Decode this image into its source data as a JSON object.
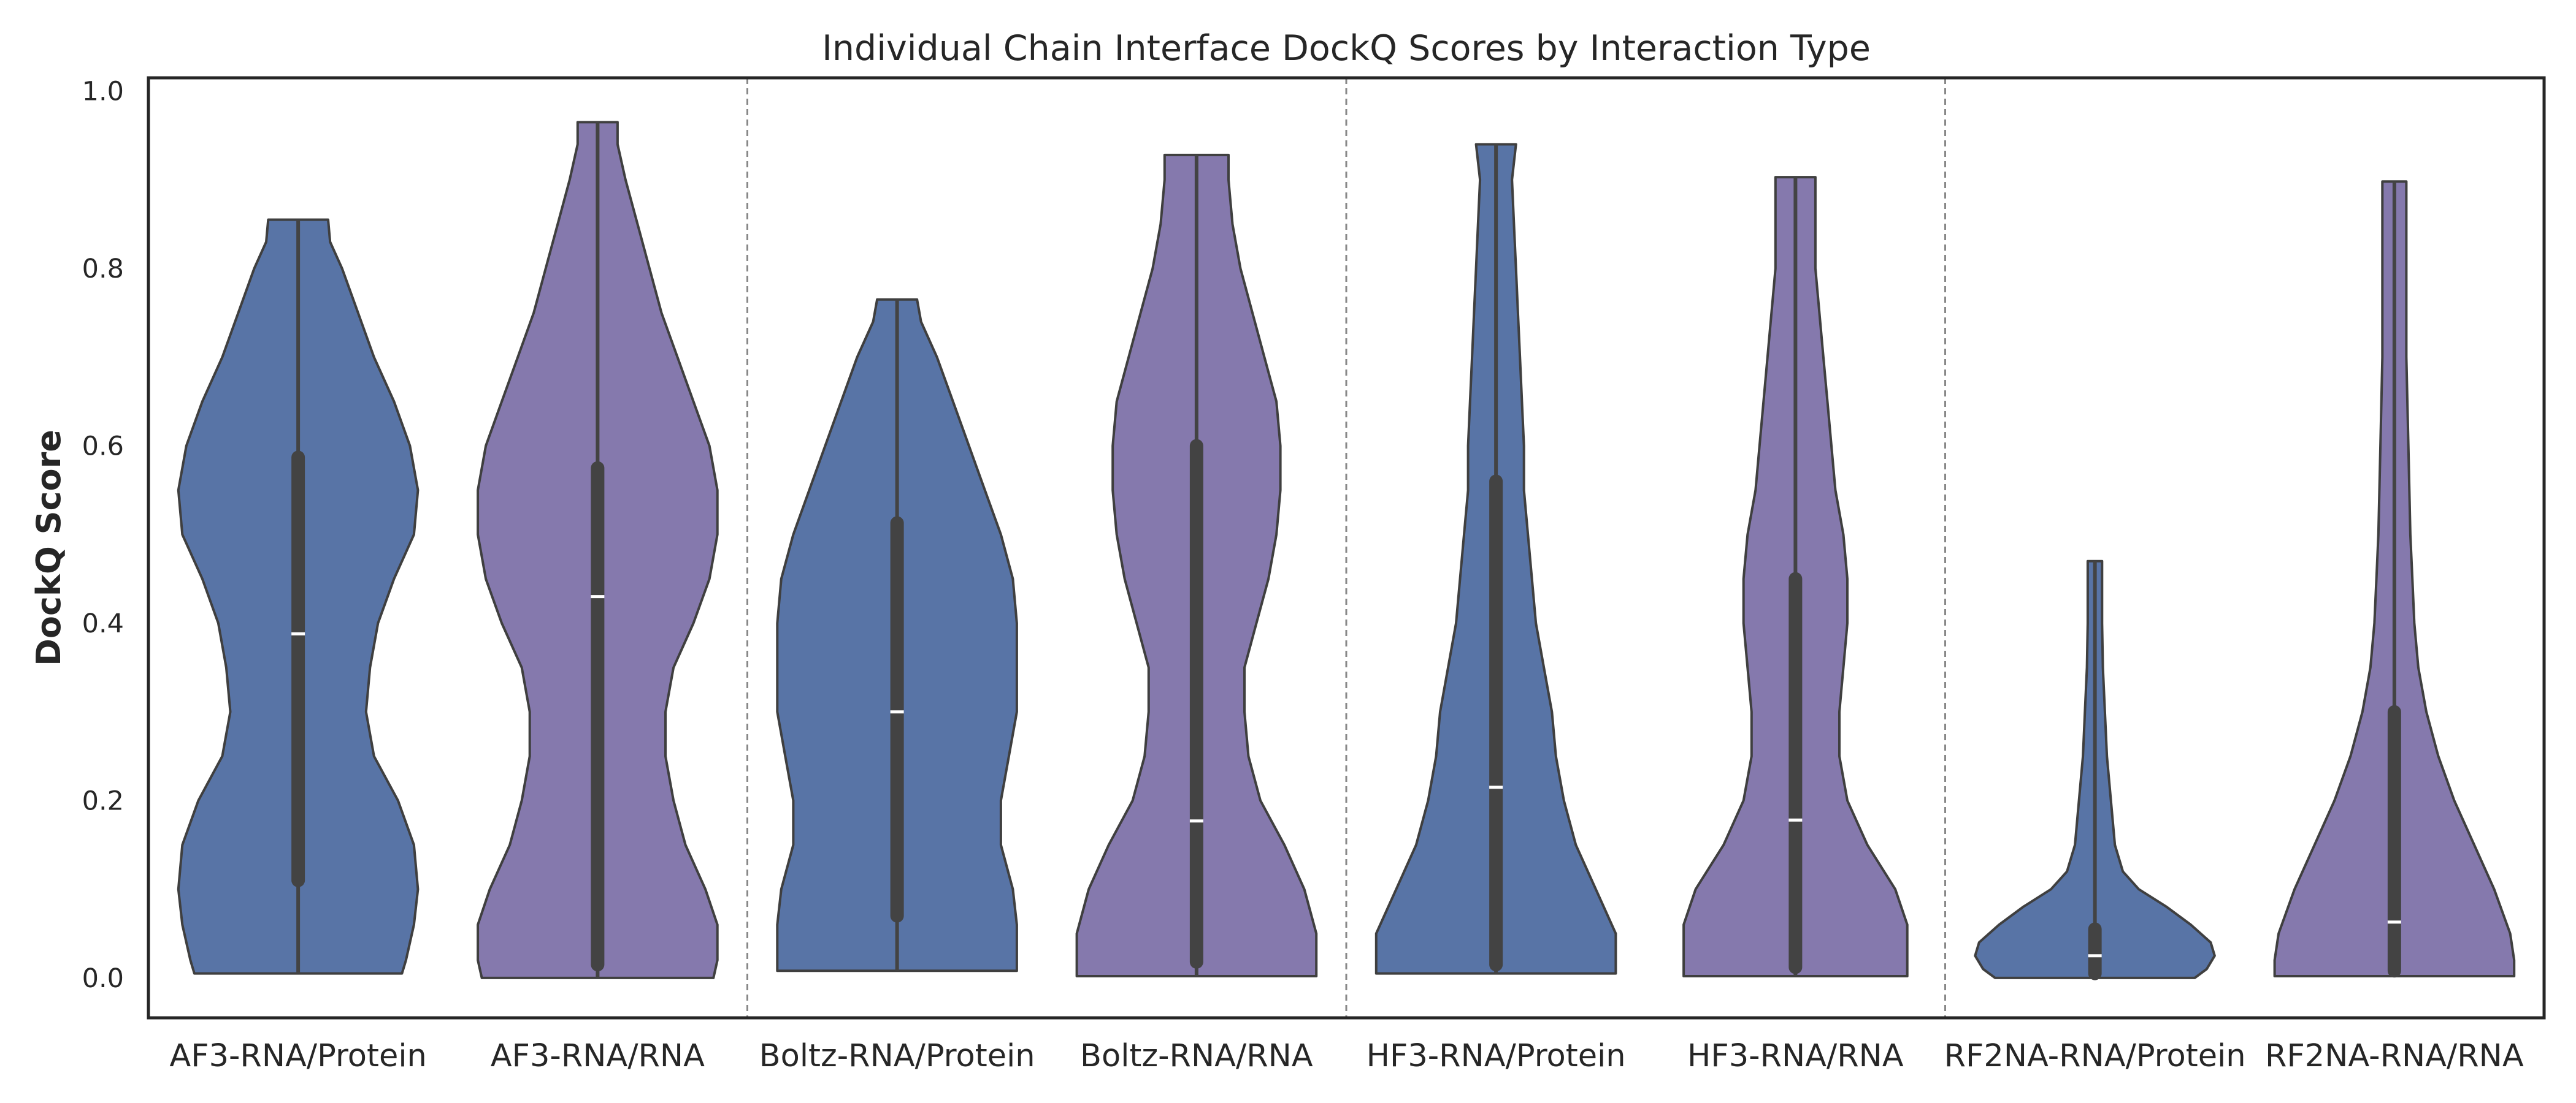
{
  "chart_data": {
    "type": "violin",
    "title": "Individual Chain Interface DockQ Scores by Interaction Type",
    "xlabel": "",
    "ylabel": "DockQ Score",
    "ylim": [
      -0.045,
      1.015
    ],
    "yticks": [
      0.0,
      0.2,
      0.4,
      0.6,
      0.8,
      1.0
    ],
    "ytick_labels": [
      "0.0",
      "0.2",
      "0.4",
      "0.6",
      "0.8",
      "1.0"
    ],
    "grid": false,
    "group_separators": "dashed lines between model pairs",
    "colors": {
      "RNA/Protein": "#5874a6",
      "RNA/RNA": "#8579ad",
      "box": "#434343",
      "median": "#ffffff",
      "outline": "#3f3f3f",
      "separator": "#888888"
    },
    "categories": [
      "AF3-RNA/Protein",
      "AF3-RNA/RNA",
      "Boltz-RNA/Protein",
      "Boltz-RNA/RNA",
      "HF3-RNA/Protein",
      "HF3-RNA/RNA",
      "RF2NA-RNA/Protein",
      "RF2NA-RNA/RNA"
    ],
    "series": [
      {
        "category": "AF3-RNA/Protein",
        "kind": "RNA/Protein",
        "min": 0.005,
        "q1": 0.11,
        "median": 0.388,
        "q3": 0.587,
        "max": 0.855,
        "density_half_widths": [
          [
            0.005,
            0.26
          ],
          [
            0.02,
            0.27
          ],
          [
            0.06,
            0.29
          ],
          [
            0.1,
            0.3
          ],
          [
            0.15,
            0.29
          ],
          [
            0.2,
            0.25
          ],
          [
            0.25,
            0.19
          ],
          [
            0.3,
            0.17
          ],
          [
            0.35,
            0.18
          ],
          [
            0.4,
            0.2
          ],
          [
            0.45,
            0.24
          ],
          [
            0.5,
            0.29
          ],
          [
            0.55,
            0.3
          ],
          [
            0.6,
            0.28
          ],
          [
            0.65,
            0.24
          ],
          [
            0.7,
            0.19
          ],
          [
            0.75,
            0.15
          ],
          [
            0.8,
            0.11
          ],
          [
            0.83,
            0.08
          ],
          [
            0.855,
            0.075
          ]
        ]
      },
      {
        "category": "AF3-RNA/RNA",
        "kind": "RNA/RNA",
        "min": 0.0,
        "q1": 0.015,
        "median": 0.43,
        "q3": 0.575,
        "max": 0.965,
        "density_half_widths": [
          [
            0.0,
            0.29
          ],
          [
            0.02,
            0.3
          ],
          [
            0.06,
            0.3
          ],
          [
            0.1,
            0.27
          ],
          [
            0.15,
            0.22
          ],
          [
            0.2,
            0.19
          ],
          [
            0.25,
            0.17
          ],
          [
            0.3,
            0.17
          ],
          [
            0.35,
            0.19
          ],
          [
            0.4,
            0.24
          ],
          [
            0.45,
            0.28
          ],
          [
            0.5,
            0.3
          ],
          [
            0.55,
            0.3
          ],
          [
            0.6,
            0.28
          ],
          [
            0.65,
            0.24
          ],
          [
            0.7,
            0.2
          ],
          [
            0.75,
            0.16
          ],
          [
            0.8,
            0.13
          ],
          [
            0.85,
            0.1
          ],
          [
            0.9,
            0.07
          ],
          [
            0.94,
            0.05
          ],
          [
            0.965,
            0.05
          ]
        ]
      },
      {
        "category": "Boltz-RNA/Protein",
        "kind": "RNA/Protein",
        "min": 0.008,
        "q1": 0.07,
        "median": 0.3,
        "q3": 0.513,
        "max": 0.765,
        "density_half_widths": [
          [
            0.008,
            0.3
          ],
          [
            0.02,
            0.3
          ],
          [
            0.06,
            0.3
          ],
          [
            0.1,
            0.29
          ],
          [
            0.15,
            0.26
          ],
          [
            0.2,
            0.26
          ],
          [
            0.25,
            0.28
          ],
          [
            0.3,
            0.3
          ],
          [
            0.35,
            0.3
          ],
          [
            0.4,
            0.3
          ],
          [
            0.45,
            0.29
          ],
          [
            0.5,
            0.26
          ],
          [
            0.55,
            0.22
          ],
          [
            0.6,
            0.18
          ],
          [
            0.65,
            0.14
          ],
          [
            0.7,
            0.1
          ],
          [
            0.74,
            0.06
          ],
          [
            0.765,
            0.05
          ]
        ]
      },
      {
        "category": "Boltz-RNA/RNA",
        "kind": "RNA/RNA",
        "min": 0.002,
        "q1": 0.018,
        "median": 0.177,
        "q3": 0.6,
        "max": 0.928,
        "density_half_widths": [
          [
            0.002,
            0.3
          ],
          [
            0.02,
            0.3
          ],
          [
            0.05,
            0.3
          ],
          [
            0.1,
            0.27
          ],
          [
            0.15,
            0.22
          ],
          [
            0.2,
            0.16
          ],
          [
            0.25,
            0.13
          ],
          [
            0.3,
            0.12
          ],
          [
            0.35,
            0.12
          ],
          [
            0.4,
            0.15
          ],
          [
            0.45,
            0.18
          ],
          [
            0.5,
            0.2
          ],
          [
            0.55,
            0.21
          ],
          [
            0.6,
            0.21
          ],
          [
            0.65,
            0.2
          ],
          [
            0.7,
            0.17
          ],
          [
            0.75,
            0.14
          ],
          [
            0.8,
            0.11
          ],
          [
            0.85,
            0.09
          ],
          [
            0.9,
            0.08
          ],
          [
            0.928,
            0.08
          ]
        ]
      },
      {
        "category": "HF3-RNA/Protein",
        "kind": "RNA/Protein",
        "min": 0.005,
        "q1": 0.015,
        "median": 0.215,
        "q3": 0.56,
        "max": 0.94,
        "density_half_widths": [
          [
            0.005,
            0.3
          ],
          [
            0.02,
            0.3
          ],
          [
            0.05,
            0.3
          ],
          [
            0.1,
            0.25
          ],
          [
            0.15,
            0.2
          ],
          [
            0.2,
            0.17
          ],
          [
            0.25,
            0.15
          ],
          [
            0.3,
            0.14
          ],
          [
            0.35,
            0.12
          ],
          [
            0.4,
            0.1
          ],
          [
            0.45,
            0.09
          ],
          [
            0.5,
            0.08
          ],
          [
            0.55,
            0.07
          ],
          [
            0.6,
            0.07
          ],
          [
            0.65,
            0.065
          ],
          [
            0.7,
            0.06
          ],
          [
            0.75,
            0.055
          ],
          [
            0.8,
            0.05
          ],
          [
            0.85,
            0.045
          ],
          [
            0.9,
            0.04
          ],
          [
            0.94,
            0.05
          ]
        ]
      },
      {
        "category": "HF3-RNA/RNA",
        "kind": "RNA/RNA",
        "min": 0.002,
        "q1": 0.012,
        "median": 0.178,
        "q3": 0.45,
        "max": 0.903,
        "density_half_widths": [
          [
            0.002,
            0.28
          ],
          [
            0.02,
            0.28
          ],
          [
            0.06,
            0.28
          ],
          [
            0.1,
            0.25
          ],
          [
            0.15,
            0.18
          ],
          [
            0.2,
            0.13
          ],
          [
            0.25,
            0.11
          ],
          [
            0.3,
            0.11
          ],
          [
            0.35,
            0.12
          ],
          [
            0.4,
            0.13
          ],
          [
            0.45,
            0.13
          ],
          [
            0.5,
            0.12
          ],
          [
            0.55,
            0.1
          ],
          [
            0.6,
            0.09
          ],
          [
            0.65,
            0.08
          ],
          [
            0.7,
            0.07
          ],
          [
            0.75,
            0.06
          ],
          [
            0.8,
            0.05
          ],
          [
            0.85,
            0.05
          ],
          [
            0.903,
            0.05
          ]
        ]
      },
      {
        "category": "RF2NA-RNA/Protein",
        "kind": "RNA/Protein",
        "min": 0.0,
        "q1": 0.005,
        "median": 0.025,
        "q3": 0.055,
        "max": 0.47,
        "density_half_widths": [
          [
            0.0,
            0.25
          ],
          [
            0.01,
            0.28
          ],
          [
            0.025,
            0.3
          ],
          [
            0.04,
            0.29
          ],
          [
            0.06,
            0.24
          ],
          [
            0.08,
            0.18
          ],
          [
            0.1,
            0.11
          ],
          [
            0.12,
            0.07
          ],
          [
            0.15,
            0.05
          ],
          [
            0.2,
            0.04
          ],
          [
            0.25,
            0.03
          ],
          [
            0.3,
            0.025
          ],
          [
            0.35,
            0.02
          ],
          [
            0.4,
            0.018
          ],
          [
            0.47,
            0.018
          ]
        ]
      },
      {
        "category": "RF2NA-RNA/RNA",
        "kind": "RNA/RNA",
        "min": 0.002,
        "q1": 0.008,
        "median": 0.063,
        "q3": 0.3,
        "max": 0.898,
        "density_half_widths": [
          [
            0.002,
            0.3
          ],
          [
            0.02,
            0.3
          ],
          [
            0.05,
            0.29
          ],
          [
            0.1,
            0.25
          ],
          [
            0.15,
            0.2
          ],
          [
            0.2,
            0.15
          ],
          [
            0.25,
            0.11
          ],
          [
            0.3,
            0.08
          ],
          [
            0.35,
            0.06
          ],
          [
            0.4,
            0.05
          ],
          [
            0.45,
            0.045
          ],
          [
            0.5,
            0.04
          ],
          [
            0.6,
            0.035
          ],
          [
            0.7,
            0.03
          ],
          [
            0.8,
            0.03
          ],
          [
            0.898,
            0.03
          ]
        ]
      }
    ]
  }
}
